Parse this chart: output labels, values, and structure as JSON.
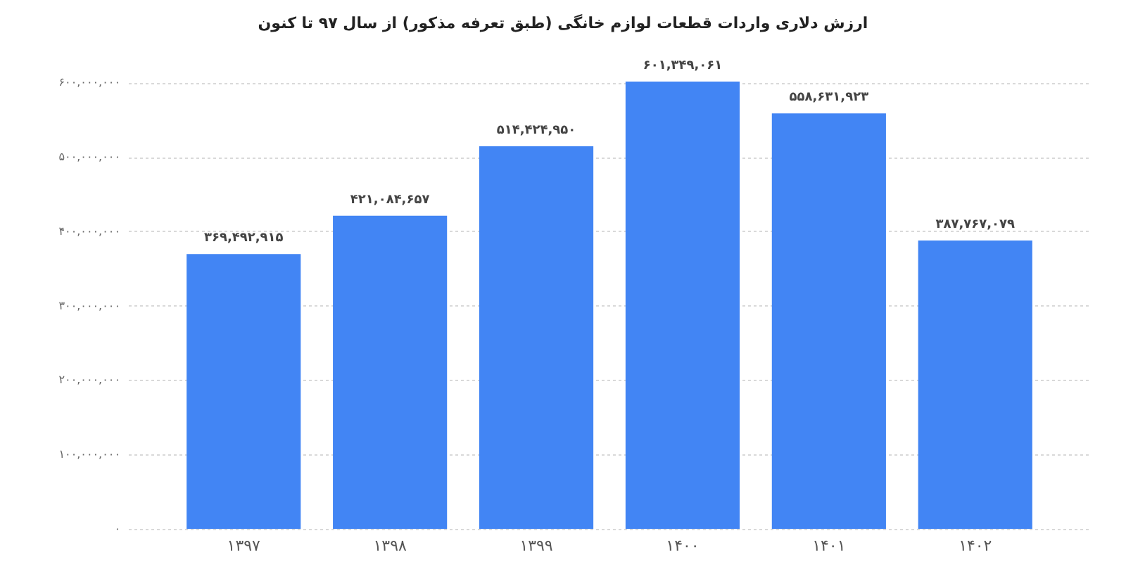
{
  "chart_data": {
    "type": "bar",
    "title": "ارزش دلاری واردات قطعات لوازم خانگی (طبق تعرفه مذکور) از سال ۹۷ تا کنون",
    "categories": [
      "۱۳۹۷",
      "۱۳۹۸",
      "۱۳۹۹",
      "۱۴۰۰",
      "۱۴۰۱",
      "۱۴۰۲"
    ],
    "values": [
      369492915,
      421084657,
      514424950,
      601349061,
      558631923,
      387767079
    ],
    "value_labels": [
      "۳۶۹,۴۹۲,۹۱۵",
      "۴۲۱,۰۸۴,۶۵۷",
      "۵۱۴,۴۲۴,۹۵۰",
      "۶۰۱,۳۴۹,۰۶۱",
      "۵۵۸,۶۳۱,۹۲۳",
      "۳۸۷,۷۶۷,۰۷۹"
    ],
    "color": "#4285f4",
    "ylim": [
      0,
      601349061
    ],
    "yticks": [
      {
        "value": 0,
        "label": "۰"
      },
      {
        "value": 100000000,
        "label": "۱۰۰,۰۰۰,۰۰۰"
      },
      {
        "value": 200000000,
        "label": "۲۰۰,۰۰۰,۰۰۰"
      },
      {
        "value": 300000000,
        "label": "۳۰۰,۰۰۰,۰۰۰"
      },
      {
        "value": 400000000,
        "label": "۴۰۰,۰۰۰,۰۰۰"
      },
      {
        "value": 500000000,
        "label": "۵۰۰,۰۰۰,۰۰۰"
      },
      {
        "value": 600000000,
        "label": "۶۰۰,۰۰۰,۰۰۰"
      }
    ],
    "grid": "y"
  }
}
